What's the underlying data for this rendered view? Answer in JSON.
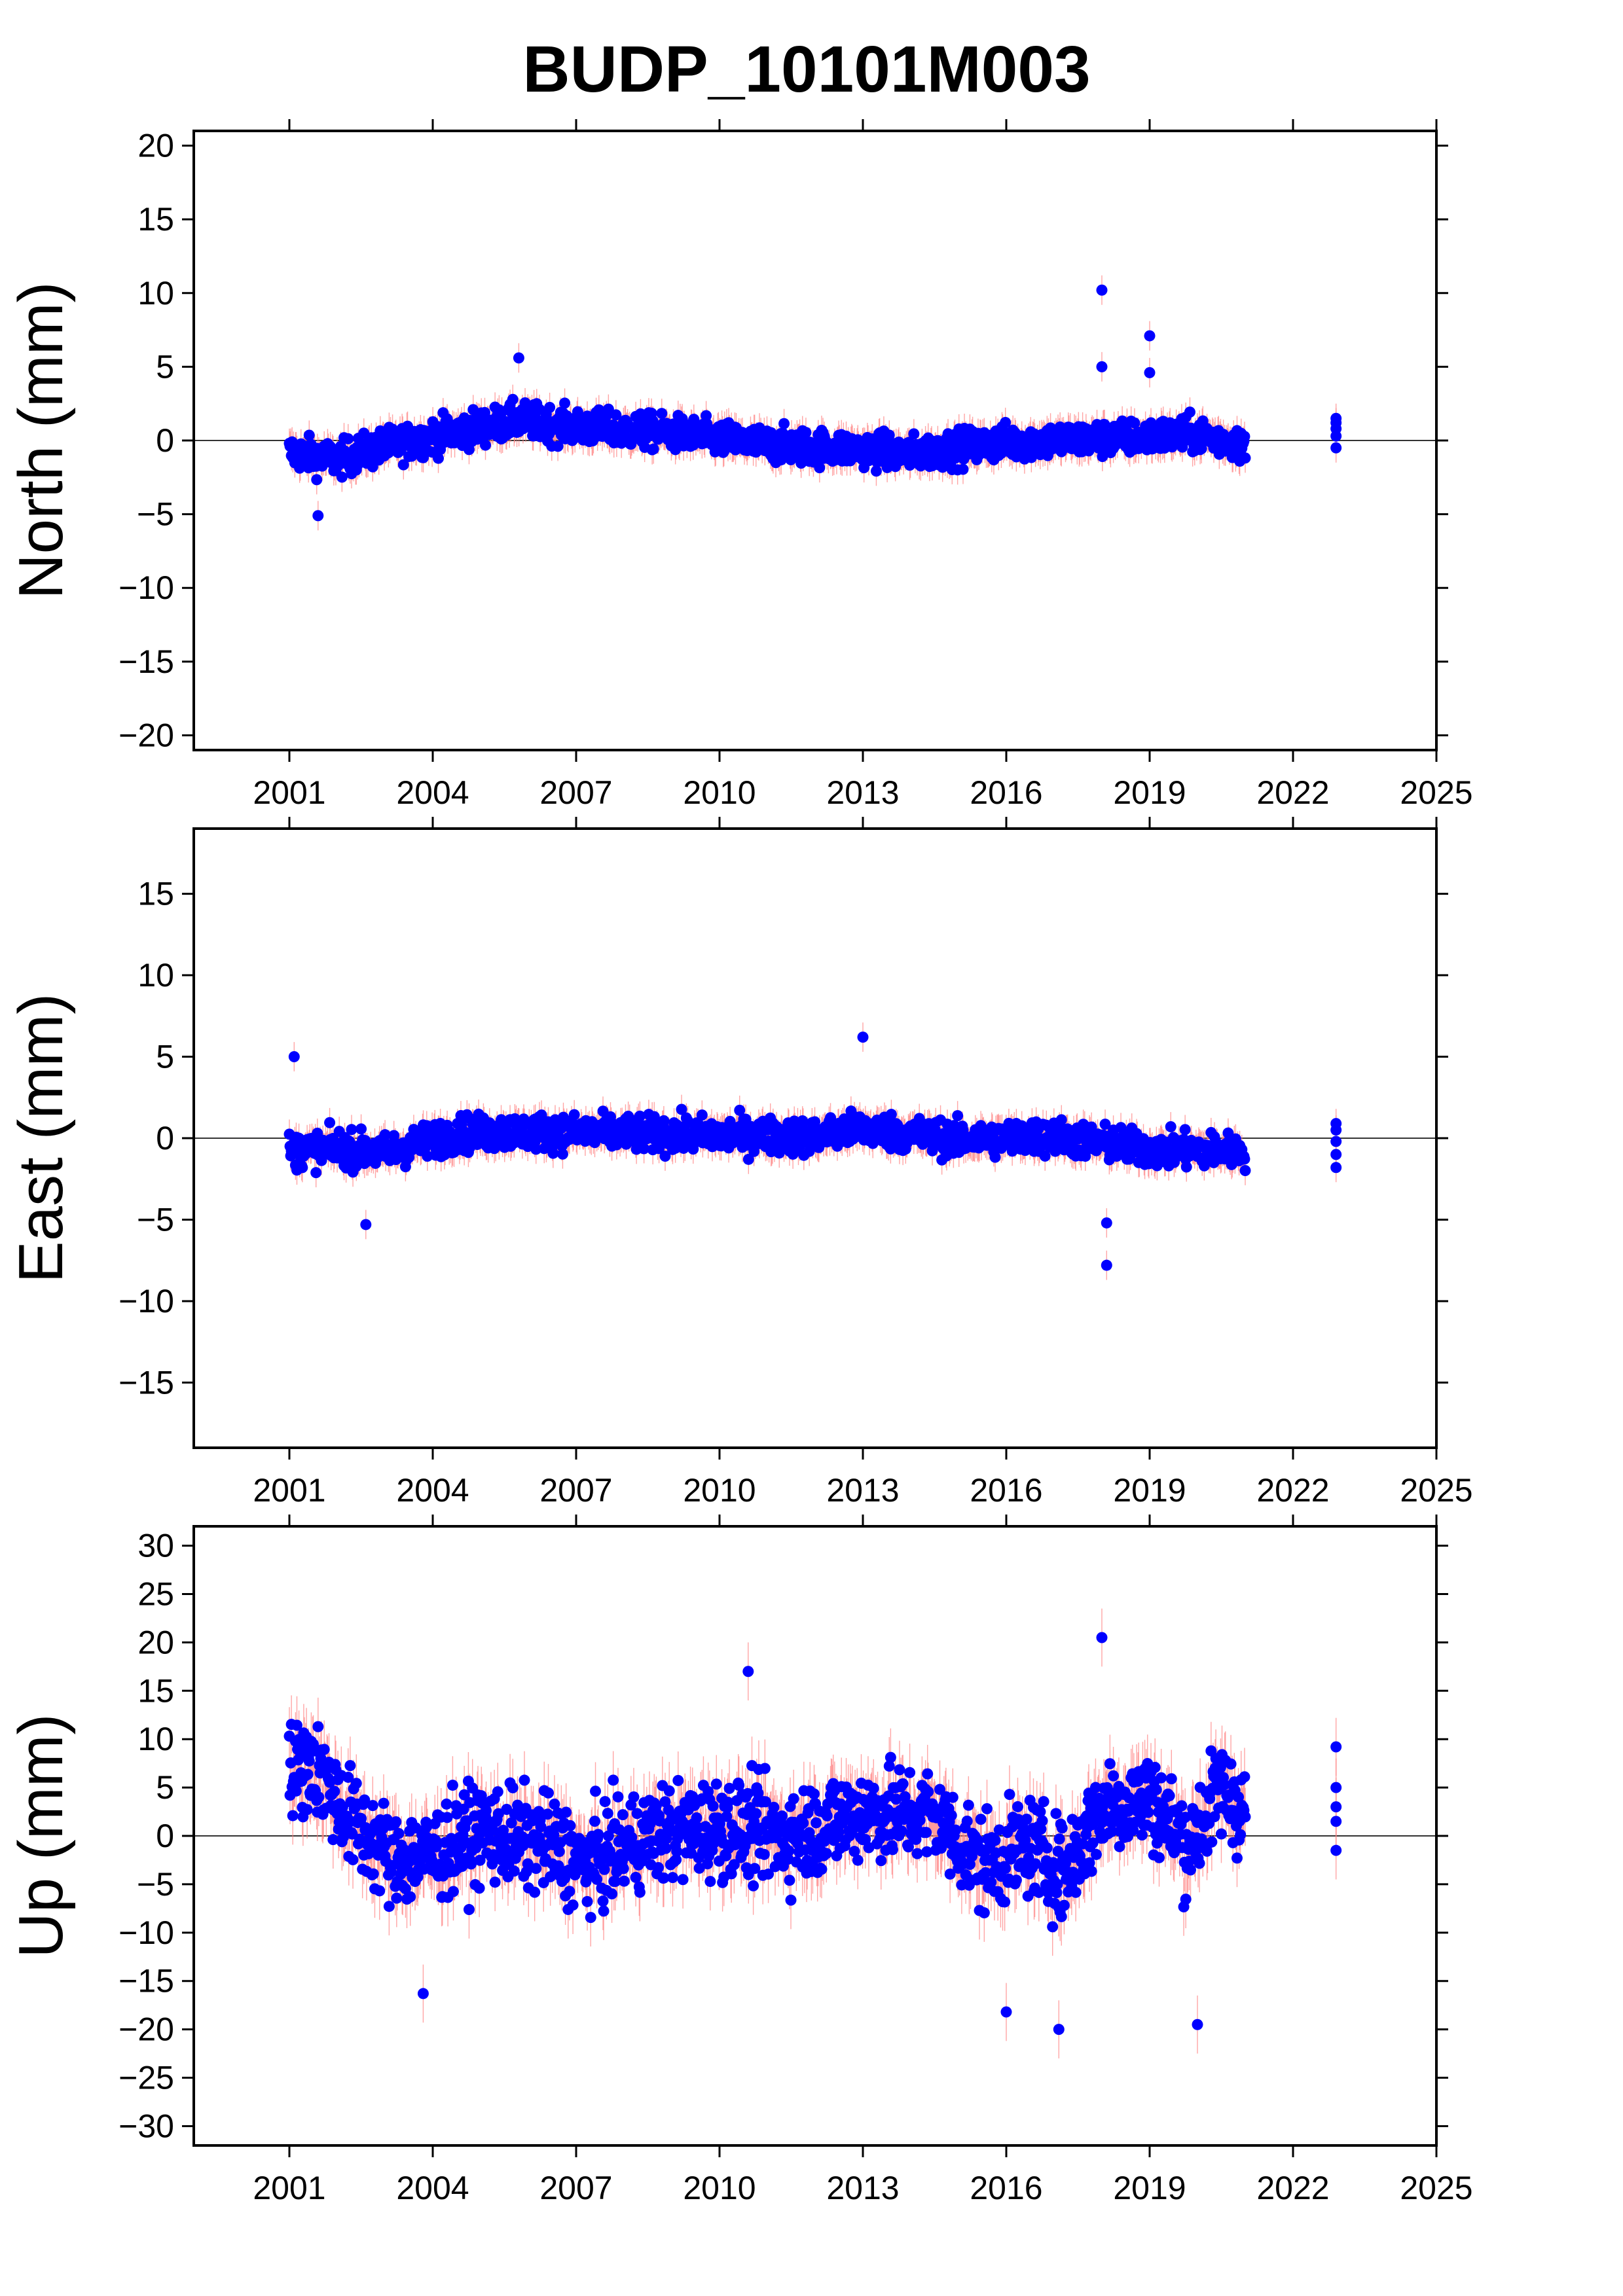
{
  "chart_data": {
    "title": "BUDP_10101M003",
    "type": "scatter",
    "x_axis": {
      "xlim": [
        1999.0,
        2025.0
      ],
      "ticks": [
        2001,
        2004,
        2007,
        2010,
        2013,
        2016,
        2019,
        2022,
        2025
      ],
      "tick_labels": [
        "2001",
        "2004",
        "2007",
        "2010",
        "2013",
        "2016",
        "2019",
        "2022",
        "2025"
      ]
    },
    "colors": {
      "points": "#0000ff",
      "error_bars": "#ff8080",
      "zero_line": "#333333"
    },
    "panels": [
      {
        "name": "north",
        "ylabel": "North (mm)",
        "ylim": [
          -21,
          21
        ],
        "yticks": [
          20,
          15,
          10,
          5,
          0,
          -5,
          -10,
          -15,
          -20
        ],
        "ytick_labels": [
          "20",
          "15",
          "10",
          "5",
          "0",
          "−5",
          "−10",
          "−15",
          "−20"
        ],
        "series_profile": {
          "x_start": 2001.0,
          "x_end": 2021.0,
          "trend": [
            [
              2001.0,
              -0.8
            ],
            [
              2002.0,
              -1.3
            ],
            [
              2003.0,
              -0.4
            ],
            [
              2004.5,
              0.6
            ],
            [
              2005.8,
              1.4
            ],
            [
              2007.0,
              0.9
            ],
            [
              2009.0,
              0.5
            ],
            [
              2011.0,
              -0.3
            ],
            [
              2013.0,
              -0.6
            ],
            [
              2014.0,
              -0.9
            ],
            [
              2016.0,
              -0.1
            ],
            [
              2018.0,
              0.1
            ],
            [
              2020.0,
              0.4
            ],
            [
              2021.0,
              -0.3
            ]
          ],
          "scatter_sd": 1.1,
          "error_bar": 1.0,
          "extra_points": [
            [
              2022.9,
              1.2
            ],
            [
              2022.9,
              1.5
            ],
            [
              2022.9,
              0.8
            ],
            [
              2022.9,
              -0.5
            ],
            [
              2022.9,
              0.3
            ],
            [
              2018.0,
              10.2
            ],
            [
              2018.0,
              5.0
            ],
            [
              2019.0,
              7.1
            ],
            [
              2019.0,
              4.6
            ],
            [
              2005.8,
              5.6
            ],
            [
              2001.6,
              -5.1
            ]
          ]
        }
      },
      {
        "name": "east",
        "ylabel": "East (mm)",
        "ylim": [
          -19,
          19
        ],
        "yticks": [
          15,
          10,
          5,
          0,
          -5,
          -10,
          -15
        ],
        "ytick_labels": [
          "15",
          "10",
          "5",
          "0",
          "−5",
          "−10",
          "−15"
        ],
        "series_profile": {
          "x_start": 2001.0,
          "x_end": 2021.0,
          "trend": [
            [
              2001.0,
              -0.8
            ],
            [
              2002.0,
              -0.6
            ],
            [
              2003.0,
              -0.9
            ],
            [
              2004.5,
              0.3
            ],
            [
              2006.0,
              0.4
            ],
            [
              2008.0,
              0.3
            ],
            [
              2010.0,
              0.2
            ],
            [
              2012.0,
              0.1
            ],
            [
              2013.0,
              0.6
            ],
            [
              2015.0,
              -0.1
            ],
            [
              2017.0,
              0.1
            ],
            [
              2019.0,
              -0.7
            ],
            [
              2021.0,
              -0.8
            ]
          ],
          "scatter_sd": 1.0,
          "error_bar": 0.9,
          "extra_points": [
            [
              2022.9,
              0.5
            ],
            [
              2022.9,
              -0.2
            ],
            [
              2022.9,
              -1.0
            ],
            [
              2022.9,
              -1.8
            ],
            [
              2022.9,
              0.9
            ],
            [
              2018.1,
              -7.8
            ],
            [
              2018.1,
              -5.2
            ],
            [
              2001.1,
              5.0
            ],
            [
              2013.0,
              6.2
            ],
            [
              2002.6,
              -5.3
            ]
          ]
        }
      },
      {
        "name": "up",
        "ylabel": "Up (mm)",
        "ylim": [
          -32,
          32
        ],
        "yticks": [
          30,
          25,
          20,
          15,
          10,
          5,
          0,
          -5,
          -10,
          -15,
          -20,
          -25,
          -30
        ],
        "ytick_labels": [
          "30",
          "25",
          "20",
          "15",
          "10",
          "5",
          "0",
          "−5",
          "−10",
          "−15",
          "−20",
          "−25",
          "−30"
        ],
        "series_profile": {
          "x_start": 2001.0,
          "x_end": 2021.0,
          "trend": [
            [
              2001.0,
              6.5
            ],
            [
              2001.5,
              7.5
            ],
            [
              2002.3,
              1.5
            ],
            [
              2003.2,
              -2.5
            ],
            [
              2004.0,
              -2.0
            ],
            [
              2005.0,
              0.5
            ],
            [
              2006.5,
              -1.0
            ],
            [
              2007.2,
              -3.0
            ],
            [
              2008.5,
              0.0
            ],
            [
              2010.0,
              1.0
            ],
            [
              2011.5,
              0.0
            ],
            [
              2013.0,
              2.5
            ],
            [
              2014.5,
              2.0
            ],
            [
              2015.5,
              -3.0
            ],
            [
              2016.5,
              -1.0
            ],
            [
              2017.2,
              -4.0
            ],
            [
              2018.0,
              3.0
            ],
            [
              2019.0,
              4.0
            ],
            [
              2019.8,
              -1.0
            ],
            [
              2020.5,
              5.0
            ],
            [
              2021.0,
              2.5
            ]
          ],
          "scatter_sd": 4.6,
          "error_bar": 3.0,
          "extra_points": [
            [
              2022.9,
              9.2
            ],
            [
              2022.9,
              5.0
            ],
            [
              2022.9,
              1.5
            ],
            [
              2022.9,
              -1.5
            ],
            [
              2022.9,
              3.0
            ],
            [
              2018.0,
              20.5
            ],
            [
              2010.6,
              17.0
            ],
            [
              2017.1,
              -20.0
            ],
            [
              2020.0,
              -19.5
            ],
            [
              2016.0,
              -18.2
            ],
            [
              2003.8,
              -16.3
            ]
          ]
        }
      }
    ]
  }
}
